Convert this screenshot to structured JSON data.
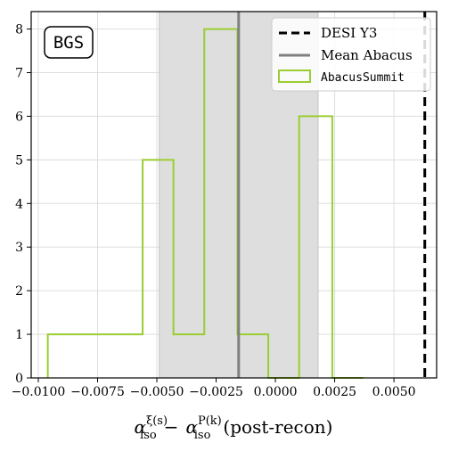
{
  "chart_data": {
    "type": "histogram",
    "xlabel_main": "α",
    "xlabel_sup_1": "ξ(s)",
    "xlabel_sub_1": "iso",
    "xlabel_minus": "−",
    "xlabel_sup_2": "P(k)",
    "xlabel_sub_2": "iso",
    "xlabel_suffix": "(post-recon)",
    "xlim": [
      -0.0103,
      0.0068
    ],
    "ylim": [
      0,
      8.4
    ],
    "xticks": [
      -0.01,
      -0.0075,
      -0.005,
      -0.0025,
      0.0,
      0.0025,
      0.005
    ],
    "xtick_labels": [
      "−0.0100",
      "−0.0075",
      "−0.0050",
      "−0.0025",
      "0.0000",
      "0.0025",
      "0.0050"
    ],
    "yticks": [
      0,
      1,
      2,
      3,
      4,
      5,
      6,
      7,
      8
    ],
    "ytick_labels": [
      "0",
      "1",
      "2",
      "3",
      "4",
      "5",
      "6",
      "7",
      "8"
    ],
    "grid": true,
    "box_label": "BGS",
    "legend_position": "top-right",
    "legend": [
      {
        "label": "DESI Y3",
        "style": "dashed",
        "color": "#000000"
      },
      {
        "label": "Mean Abacus",
        "style": "solid",
        "color": "#808080"
      },
      {
        "label": "AbacusSummit",
        "style": "step",
        "color": "#9acd32"
      }
    ],
    "histogram": {
      "name": "AbacusSummit",
      "color": "#9acd32",
      "bins": [
        -0.0096,
        -0.0083,
        -0.007,
        -0.0056,
        -0.0043,
        -0.003,
        -0.0016,
        -0.0003,
        0.001,
        0.0024,
        0.0037
      ],
      "counts": [
        1,
        1,
        1,
        5,
        1,
        8,
        1,
        0,
        6,
        0
      ]
    },
    "mean_abacus": -0.00155,
    "mean_band": [
      -0.0049,
      0.0018
    ],
    "mean_color": "#808080",
    "band_color": "#dcdcdc",
    "desi_y3": 0.0063,
    "desi_color": "#000000"
  }
}
